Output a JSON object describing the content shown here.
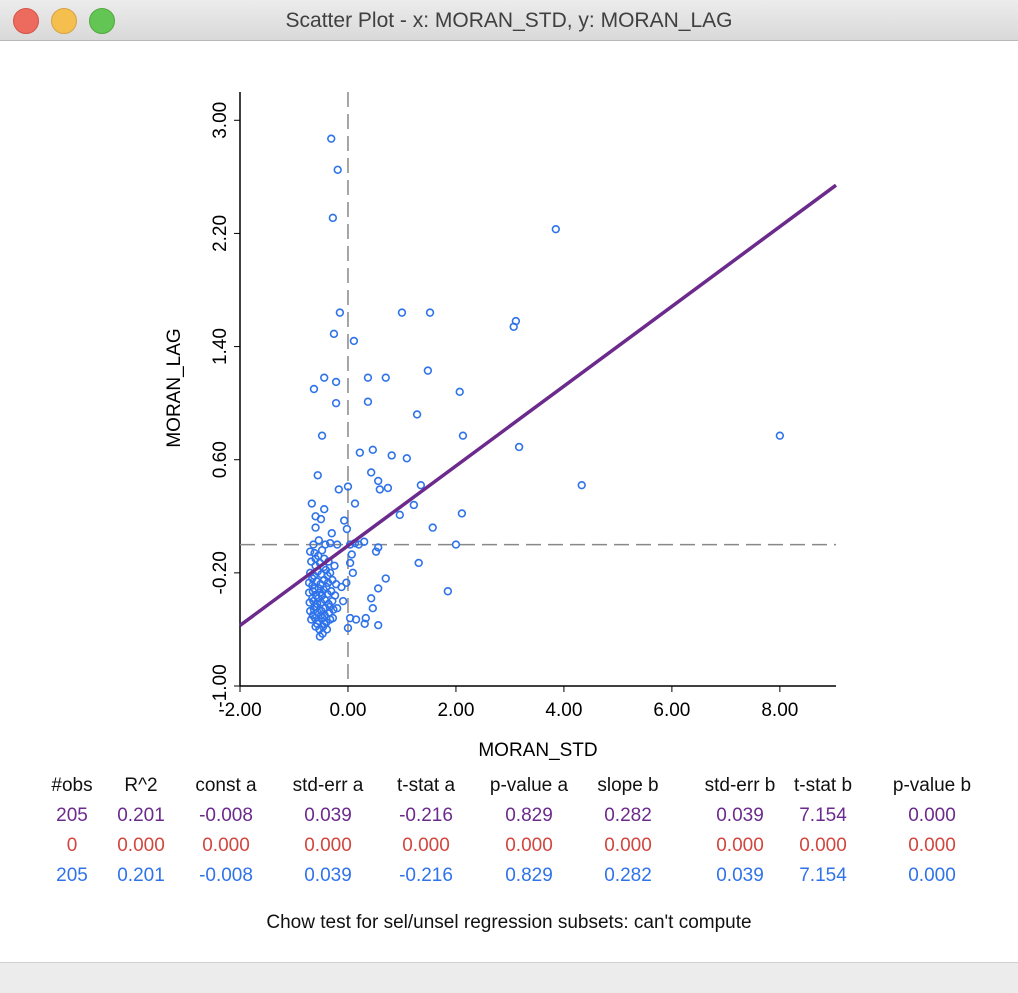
{
  "window": {
    "title": "Scatter Plot - x: MORAN_STD, y: MORAN_LAG"
  },
  "colors": {
    "points": "#2f73ea",
    "fit_line": "#6b2a8c",
    "row_all": "#6b2a8c",
    "row_selected": "#d0473f",
    "row_unselected": "#2f73ea"
  },
  "chart_data": {
    "type": "scatter",
    "xlabel": "MORAN_STD",
    "ylabel": "MORAN_LAG",
    "xlim": [
      -2.0,
      9.04
    ],
    "ylim": [
      -1.0,
      3.2
    ],
    "xticks": [
      "-2.00",
      "0.00",
      "2.00",
      "4.00",
      "6.00",
      "8.00"
    ],
    "yticks": [
      "-1.00",
      "-0.20",
      "0.60",
      "1.40",
      "2.20",
      "3.00"
    ],
    "grid": false,
    "reference_lines": {
      "x": 0.0,
      "y": 0.0
    },
    "regression": {
      "intercept": -0.008,
      "slope": 0.282
    },
    "points": [
      [
        -0.31,
        2.87
      ],
      [
        -0.19,
        2.65
      ],
      [
        -0.28,
        2.31
      ],
      [
        3.85,
        2.23
      ],
      [
        -0.15,
        1.64
      ],
      [
        1.0,
        1.64
      ],
      [
        1.52,
        1.64
      ],
      [
        3.07,
        1.54
      ],
      [
        3.11,
        1.58
      ],
      [
        -0.26,
        1.49
      ],
      [
        0.11,
        1.44
      ],
      [
        1.48,
        1.23
      ],
      [
        -0.44,
        1.18
      ],
      [
        -0.22,
        1.15
      ],
      [
        0.37,
        1.18
      ],
      [
        0.7,
        1.18
      ],
      [
        -0.63,
        1.1
      ],
      [
        2.07,
        1.08
      ],
      [
        -0.22,
        1.0
      ],
      [
        0.37,
        1.01
      ],
      [
        1.28,
        0.92
      ],
      [
        -0.48,
        0.77
      ],
      [
        2.13,
        0.77
      ],
      [
        8.0,
        0.77
      ],
      [
        0.46,
        0.67
      ],
      [
        3.17,
        0.69
      ],
      [
        0.22,
        0.65
      ],
      [
        0.81,
        0.63
      ],
      [
        1.09,
        0.61
      ],
      [
        -0.56,
        0.49
      ],
      [
        0.43,
        0.51
      ],
      [
        0.56,
        0.45
      ],
      [
        0.74,
        0.4
      ],
      [
        0.59,
        0.39
      ],
      [
        1.35,
        0.42
      ],
      [
        4.33,
        0.42
      ],
      [
        0.0,
        0.41
      ],
      [
        -0.17,
        0.39
      ],
      [
        -0.67,
        0.29
      ],
      [
        0.13,
        0.29
      ],
      [
        1.22,
        0.28
      ],
      [
        0.96,
        0.21
      ],
      [
        2.11,
        0.22
      ],
      [
        1.57,
        0.12
      ],
      [
        -0.6,
        0.2
      ],
      [
        -0.44,
        0.25
      ],
      [
        -0.07,
        0.17
      ],
      [
        -0.02,
        0.11
      ],
      [
        -0.6,
        0.12
      ],
      [
        -0.5,
        0.18
      ],
      [
        -0.3,
        0.08
      ],
      [
        -0.64,
        0.0
      ],
      [
        -0.54,
        0.03
      ],
      [
        -0.42,
        0.0
      ],
      [
        -0.33,
        0.01
      ],
      [
        -0.2,
        0.0
      ],
      [
        0.04,
        0.0
      ],
      [
        0.13,
        0.01
      ],
      [
        0.2,
        0.0
      ],
      [
        0.3,
        0.02
      ],
      [
        0.56,
        -0.02
      ],
      [
        0.52,
        -0.05
      ],
      [
        2.0,
        0.0
      ],
      [
        1.31,
        -0.13
      ],
      [
        1.85,
        -0.33
      ],
      [
        0.7,
        -0.24
      ],
      [
        0.56,
        -0.31
      ],
      [
        0.43,
        -0.38
      ],
      [
        0.46,
        -0.45
      ],
      [
        0.33,
        -0.52
      ],
      [
        0.56,
        -0.57
      ],
      [
        0.04,
        -0.52
      ],
      [
        0.15,
        -0.53
      ],
      [
        -0.03,
        -0.27
      ],
      [
        0.09,
        -0.2
      ],
      [
        0.04,
        -0.13
      ],
      [
        0.07,
        -0.07
      ],
      [
        -0.09,
        -0.4
      ],
      [
        0.0,
        -0.59
      ],
      [
        0.31,
        -0.56
      ],
      [
        -0.12,
        -0.3
      ],
      [
        -0.7,
        -0.05
      ],
      [
        -0.62,
        -0.06
      ],
      [
        -0.55,
        -0.08
      ],
      [
        -0.48,
        -0.04
      ],
      [
        -0.68,
        -0.12
      ],
      [
        -0.6,
        -0.15
      ],
      [
        -0.52,
        -0.13
      ],
      [
        -0.44,
        -0.1
      ],
      [
        -0.36,
        -0.12
      ],
      [
        -0.7,
        -0.2
      ],
      [
        -0.63,
        -0.22
      ],
      [
        -0.56,
        -0.19
      ],
      [
        -0.49,
        -0.21
      ],
      [
        -0.41,
        -0.18
      ],
      [
        -0.33,
        -0.2
      ],
      [
        -0.72,
        -0.27
      ],
      [
        -0.66,
        -0.29
      ],
      [
        -0.58,
        -0.26
      ],
      [
        -0.51,
        -0.28
      ],
      [
        -0.44,
        -0.25
      ],
      [
        -0.37,
        -0.27
      ],
      [
        -0.29,
        -0.25
      ],
      [
        -0.72,
        -0.34
      ],
      [
        -0.65,
        -0.33
      ],
      [
        -0.59,
        -0.36
      ],
      [
        -0.52,
        -0.34
      ],
      [
        -0.45,
        -0.32
      ],
      [
        -0.38,
        -0.35
      ],
      [
        -0.31,
        -0.33
      ],
      [
        -0.24,
        -0.36
      ],
      [
        -0.71,
        -0.41
      ],
      [
        -0.64,
        -0.4
      ],
      [
        -0.57,
        -0.42
      ],
      [
        -0.5,
        -0.41
      ],
      [
        -0.43,
        -0.39
      ],
      [
        -0.36,
        -0.42
      ],
      [
        -0.29,
        -0.4
      ],
      [
        -0.7,
        -0.47
      ],
      [
        -0.63,
        -0.46
      ],
      [
        -0.56,
        -0.48
      ],
      [
        -0.49,
        -0.47
      ],
      [
        -0.42,
        -0.45
      ],
      [
        -0.35,
        -0.48
      ],
      [
        -0.27,
        -0.46
      ],
      [
        -0.68,
        -0.53
      ],
      [
        -0.61,
        -0.52
      ],
      [
        -0.54,
        -0.54
      ],
      [
        -0.47,
        -0.52
      ],
      [
        -0.4,
        -0.55
      ],
      [
        -0.33,
        -0.53
      ],
      [
        -0.6,
        -0.58
      ],
      [
        -0.53,
        -0.6
      ],
      [
        -0.46,
        -0.58
      ],
      [
        -0.39,
        -0.6
      ],
      [
        -0.52,
        -0.65
      ],
      [
        -0.47,
        -0.63
      ],
      [
        -0.66,
        -0.24
      ],
      [
        -0.62,
        -0.31
      ],
      [
        -0.55,
        -0.38
      ],
      [
        -0.48,
        -0.36
      ],
      [
        -0.58,
        -0.44
      ],
      [
        -0.5,
        -0.5
      ],
      [
        -0.43,
        -0.5
      ],
      [
        -0.66,
        -0.38
      ],
      [
        -0.6,
        -0.1
      ],
      [
        -0.4,
        -0.3
      ],
      [
        -0.34,
        -0.44
      ],
      [
        -0.45,
        -0.16
      ],
      [
        -0.54,
        -0.31
      ],
      [
        -0.62,
        -0.44
      ],
      [
        -0.38,
        -0.22
      ],
      [
        -0.25,
        -0.15
      ],
      [
        -0.22,
        -0.28
      ],
      [
        -0.28,
        -0.52
      ],
      [
        -0.2,
        -0.45
      ],
      [
        -0.65,
        -0.5
      ],
      [
        -0.57,
        -0.56
      ],
      [
        -0.44,
        -0.56
      ]
    ]
  },
  "stats": {
    "headers": [
      "#obs",
      "R^2",
      "const a",
      "std-err a",
      "t-stat a",
      "p-value a",
      "slope b",
      "std-err b",
      "t-stat b",
      "p-value b"
    ],
    "rows": [
      [
        "205",
        "0.201",
        "-0.008",
        "0.039",
        "-0.216",
        "0.829",
        "0.282",
        "0.039",
        "7.154",
        "0.000"
      ],
      [
        "0",
        "0.000",
        "0.000",
        "0.000",
        "0.000",
        "0.000",
        "0.000",
        "0.000",
        "0.000",
        "0.000"
      ],
      [
        "205",
        "0.201",
        "-0.008",
        "0.039",
        "-0.216",
        "0.829",
        "0.282",
        "0.039",
        "7.154",
        "0.000"
      ]
    ],
    "chow": "Chow test for sel/unsel regression subsets: can't compute"
  }
}
